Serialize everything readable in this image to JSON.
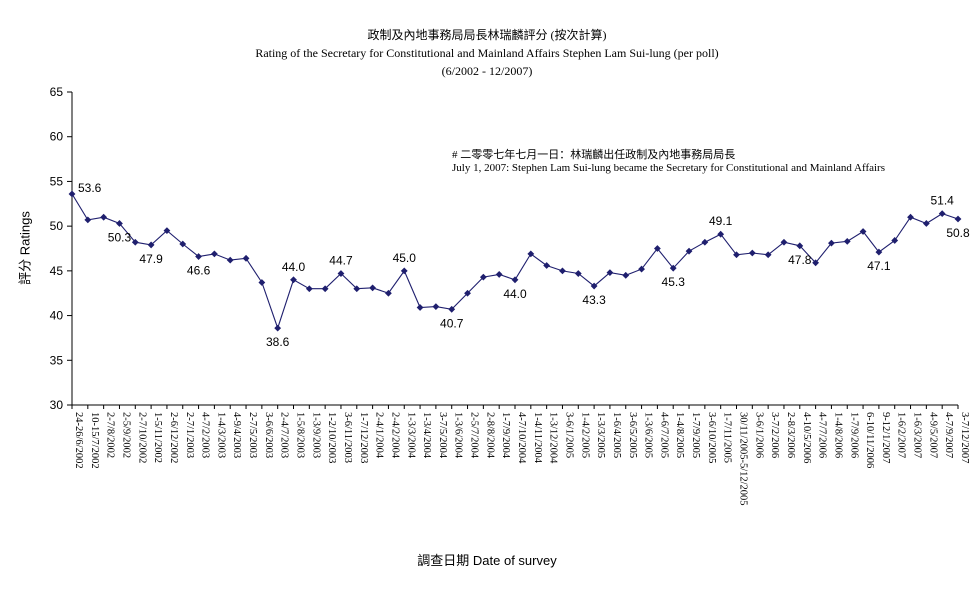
{
  "title_zh": "政制及內地事務局局長林瑞麟評分 (按次計算)",
  "title_en": "Rating of the Secretary for Constitutional and Mainland Affairs Stephen Lam Sui-lung (per poll)",
  "title_range": "(6/2002 - 12/2007)",
  "annotation_zh": "# 二零零七年七月一日：林瑞麟出任政制及內地事務局局長",
  "annotation_en": "July 1, 2007: Stephen Lam Sui-lung became the Secretary for Constitutional and Mainland Affairs",
  "chart_data": {
    "type": "line",
    "xlabel": "調查日期 Date of survey",
    "ylabel": "評分 Ratings",
    "ylim": [
      30,
      65
    ],
    "yticks": [
      30,
      35,
      40,
      45,
      50,
      55,
      60,
      65
    ],
    "grid": false,
    "series_color": "#1f1f6e",
    "categories": [
      "24-26/6/2002",
      "10-15/7/2002",
      "2-7/8/2002",
      "2-5/9/2002",
      "2-7/10/2002",
      "1-5/11/2002",
      "2-6/12/2002",
      "2-7/1/2003",
      "4-7/2/2003",
      "1-4/3/2003",
      "4-9/4/2003",
      "2-7/5/2003",
      "3-6/6/2003",
      "2-4/7/2003",
      "1-5/8/2003",
      "1-3/9/2003",
      "1-2/10/2003",
      "3-6/11/2003",
      "1-7/12/2003",
      "2-4/1/2004",
      "2-4/2/2004",
      "1-3/3/2004",
      "1-3/4/2004",
      "3-7/5/2004",
      "1-3/6/2004",
      "2-5/7/2004",
      "2-8/8/2004",
      "1-7/9/2004",
      "4-7/10/2004",
      "1-4/11/2004",
      "1-3/12/2004",
      "3-6/1/2005",
      "1-4/2/2005",
      "1-3/3/2005",
      "1-6/4/2005",
      "3-6/5/2005",
      "1-3/6/2005",
      "4-6/7/2005",
      "1-4/8/2005",
      "1-7/9/2005",
      "3-6/10/2005",
      "1-7/11/2005",
      "30/11/2005-5/12/2005",
      "3-6/1/2006",
      "3-7/2/2006",
      "2-8/3/2006",
      "4-10/5/2006",
      "4-7/7/2006",
      "1-4/8/2006",
      "1-7/9/2006",
      "6-10/11/2006",
      "9-12/1/2007",
      "1-6/2/2007",
      "1-6/3/2007",
      "4-9/5/2007",
      "4-7/9/2007",
      "3-7/12/2007"
    ],
    "values": [
      53.6,
      50.7,
      51.0,
      50.3,
      48.2,
      47.9,
      49.5,
      48.0,
      46.6,
      46.9,
      46.2,
      46.4,
      43.7,
      38.6,
      44.0,
      43.0,
      43.0,
      44.7,
      43.0,
      43.1,
      42.5,
      45.0,
      40.9,
      41.0,
      40.7,
      42.5,
      44.3,
      44.6,
      44.0,
      46.9,
      45.6,
      45.0,
      44.7,
      43.3,
      44.8,
      44.5,
      45.2,
      47.5,
      45.3,
      47.2,
      48.2,
      49.1,
      46.8,
      47.0,
      46.8,
      48.2,
      47.8,
      45.9,
      48.1,
      48.3,
      49.4,
      47.1,
      48.4,
      51.0,
      50.3,
      51.4,
      50.8
    ],
    "data_labels": {
      "0": "53.6",
      "3": "50.3",
      "5": "47.9",
      "8": "46.6",
      "13": "38.6",
      "14": "44.0",
      "17": "44.7",
      "21": "45.0",
      "24": "40.7",
      "28": "44.0",
      "33": "43.3",
      "38": "45.3",
      "41": "49.1",
      "46": "47.8",
      "51": "47.1",
      "55": "51.4",
      "56": "50.8"
    }
  }
}
